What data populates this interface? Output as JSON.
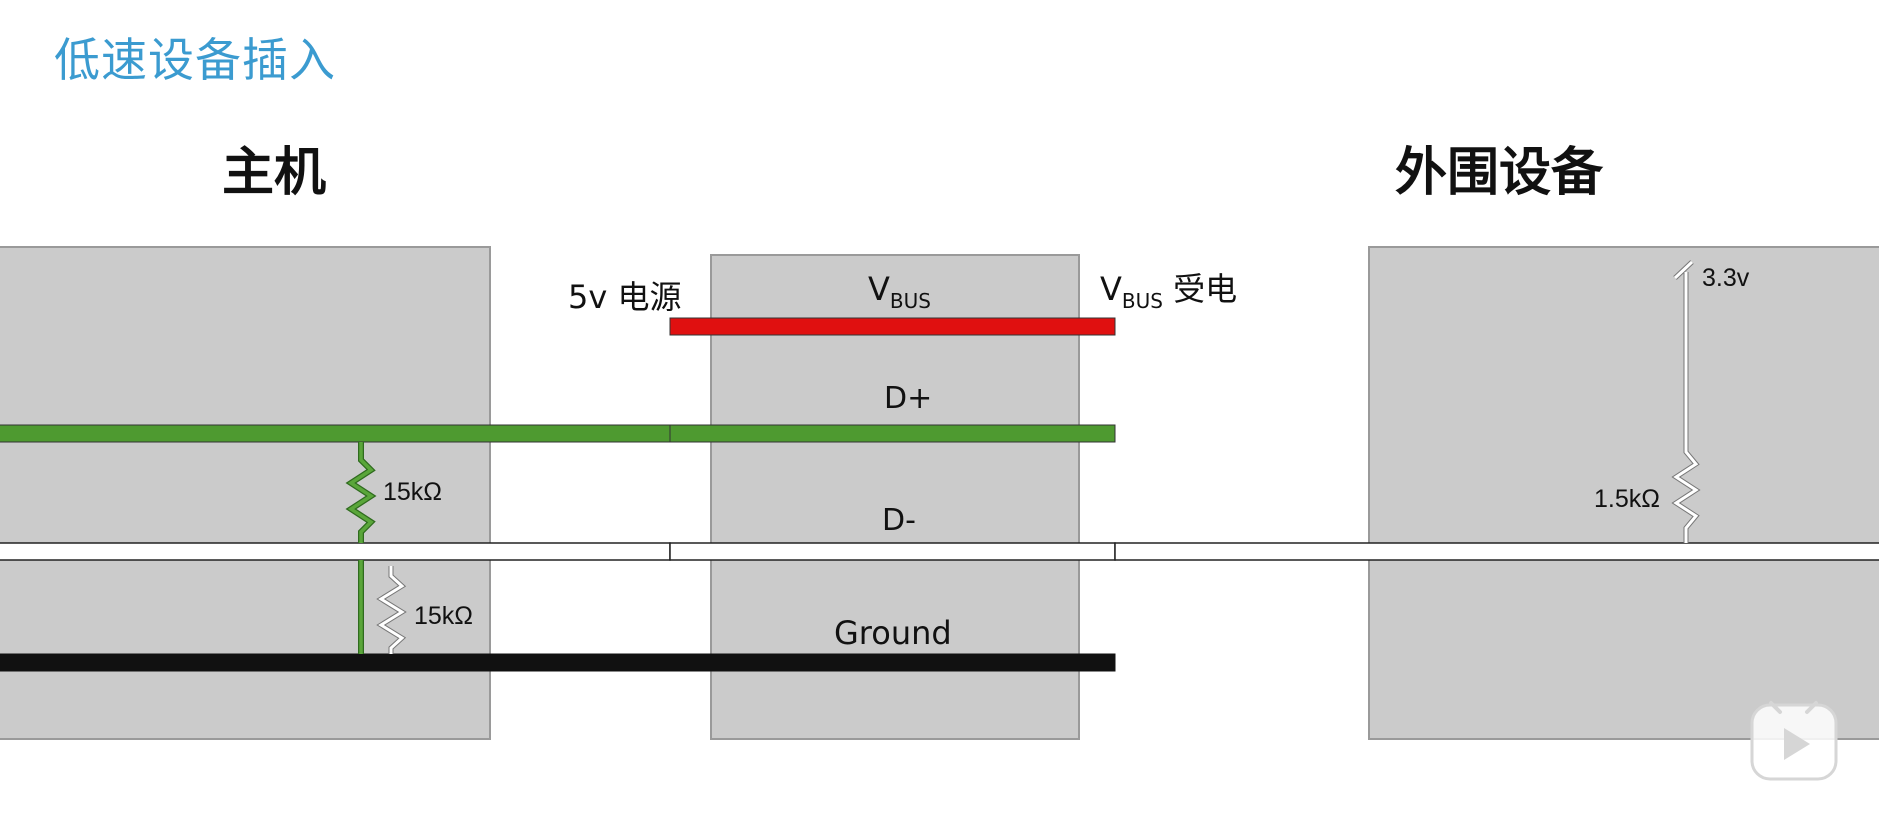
{
  "page": {
    "title": "低速设备插入",
    "host_label": "主机",
    "device_label": "外围设备"
  },
  "lines": {
    "vbus": {
      "main": "V",
      "sub": "BUS"
    },
    "vbus_power": {
      "main": "V",
      "sub": "BUS",
      "suffix": " 受电"
    },
    "dplus": "D+",
    "dminus": "D-",
    "ground": "Ground"
  },
  "labels": {
    "source": "5v 电源",
    "pullup_voltage": "3.3v"
  },
  "resistors": {
    "host_dplus": "15kΩ",
    "host_dminus": "15kΩ",
    "device_pullup": "1.5kΩ"
  },
  "colors": {
    "vbus": "#e01010",
    "dplus": "#4e9a30",
    "dminus": "#ffffff",
    "ground": "#111111",
    "box_fill": "#cbcbcb",
    "box_stroke": "#9a9a9a",
    "title": "#3b9bd0"
  },
  "icons": {
    "play_overlay": "play-icon"
  }
}
